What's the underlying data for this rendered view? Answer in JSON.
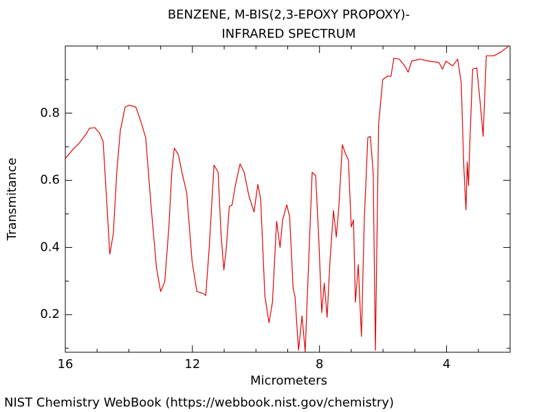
{
  "chart_data": {
    "type": "line",
    "title": "BENZENE, M-BIS(2,3-EPOXY PROPOXY)-",
    "subtitle": "INFRARED SPECTRUM",
    "x_label": "Micrometers",
    "y_label": "Transmitance",
    "xlim": [
      16,
      2
    ],
    "ylim": [
      0.088,
      1.0
    ],
    "xticks": [
      16,
      12,
      8,
      4
    ],
    "yticks": [
      0.2,
      0.4,
      0.6,
      0.8
    ],
    "xminor_ticks": [
      15,
      14,
      13,
      11,
      10,
      9,
      7,
      6,
      5,
      3
    ],
    "yminor_ticks": [
      0.1,
      0.3,
      0.5,
      0.7,
      0.9
    ],
    "grid": false,
    "series": [
      {
        "name": "spectrum",
        "color": "#e00000",
        "x": [
          16,
          15.78,
          15.57,
          15.35,
          15.24,
          15.07,
          14.92,
          14.81,
          14.7,
          14.6,
          14.49,
          14.38,
          14.27,
          14.12,
          13.99,
          13.78,
          13.63,
          13.47,
          13.3,
          13.13,
          13.0,
          12.87,
          12.74,
          12.65,
          12.57,
          12.44,
          12.33,
          12.18,
          12.01,
          11.86,
          11.66,
          11.58,
          11.47,
          11.32,
          11.19,
          11.1,
          11.01,
          10.93,
          10.84,
          10.75,
          10.65,
          10.5,
          10.37,
          10.22,
          10.06,
          9.94,
          9.85,
          9.72,
          9.59,
          9.48,
          9.35,
          9.24,
          9.16,
          9.03,
          8.94,
          8.83,
          8.77,
          8.66,
          8.55,
          8.45,
          8.34,
          8.23,
          8.12,
          8.02,
          7.93,
          7.85,
          7.76,
          7.67,
          7.56,
          7.47,
          7.39,
          7.28,
          7.17,
          7.09,
          7.0,
          6.93,
          6.87,
          6.78,
          6.68,
          6.59,
          6.48,
          6.4,
          6.31,
          6.24,
          6.14,
          6.01,
          5.86,
          5.75,
          5.66,
          5.49,
          5.32,
          5.21,
          5.1,
          4.84,
          4.56,
          4.24,
          4.13,
          4.02,
          3.81,
          3.65,
          3.54,
          3.46,
          3.39,
          3.35,
          3.31,
          3.27,
          3.18,
          3.05,
          2.94,
          2.85,
          2.75,
          2.51,
          2.29,
          2.04
        ],
        "values": [
          0.665,
          0.69,
          0.71,
          0.737,
          0.755,
          0.757,
          0.74,
          0.716,
          0.543,
          0.38,
          0.44,
          0.625,
          0.747,
          0.818,
          0.824,
          0.818,
          0.778,
          0.727,
          0.522,
          0.339,
          0.269,
          0.298,
          0.461,
          0.624,
          0.696,
          0.676,
          0.624,
          0.563,
          0.359,
          0.269,
          0.263,
          0.257,
          0.4,
          0.645,
          0.624,
          0.441,
          0.333,
          0.4,
          0.522,
          0.527,
          0.584,
          0.649,
          0.624,
          0.553,
          0.506,
          0.588,
          0.543,
          0.257,
          0.176,
          0.237,
          0.478,
          0.4,
          0.482,
          0.527,
          0.492,
          0.278,
          0.253,
          0.094,
          0.196,
          0.09,
          0.359,
          0.624,
          0.614,
          0.42,
          0.206,
          0.294,
          0.192,
          0.359,
          0.51,
          0.431,
          0.522,
          0.706,
          0.676,
          0.661,
          0.461,
          0.482,
          0.237,
          0.349,
          0.135,
          0.482,
          0.727,
          0.731,
          0.624,
          0.094,
          0.767,
          0.9,
          0.91,
          0.91,
          0.963,
          0.961,
          0.941,
          0.922,
          0.955,
          0.961,
          0.955,
          0.951,
          0.931,
          0.955,
          0.941,
          0.961,
          0.89,
          0.645,
          0.512,
          0.655,
          0.584,
          0.706,
          0.931,
          0.935,
          0.829,
          0.731,
          0.971,
          0.971,
          0.982,
          1.0
        ]
      }
    ]
  },
  "footer": "NIST Chemistry WebBook (https://webbook.nist.gov/chemistry)"
}
